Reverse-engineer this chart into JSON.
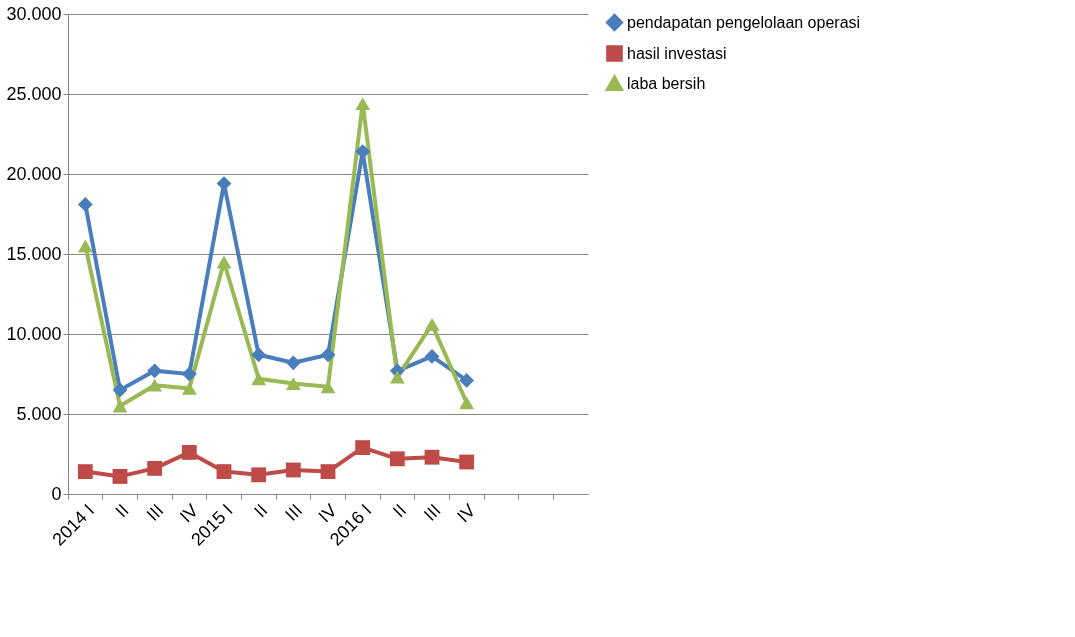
{
  "chart_data": {
    "type": "line",
    "categories": [
      "2014 I",
      "II",
      "III",
      "IV",
      "2015 I",
      "II",
      "III",
      "IV",
      "2016 I",
      "II",
      "III",
      "IV",
      null,
      null,
      null
    ],
    "series": [
      {
        "name": "pendapatan pengelolaan operasi",
        "color": "#4a7ebb",
        "marker": "diamond",
        "values": [
          18100,
          6500,
          7700,
          7500,
          19400,
          8700,
          8200,
          8700,
          21400,
          7700,
          8600,
          7100,
          null,
          null,
          null
        ]
      },
      {
        "name": "hasil investasi",
        "color": "#be4b48",
        "marker": "square",
        "values": [
          1400,
          1100,
          1600,
          2600,
          1400,
          1200,
          1500,
          1400,
          2900,
          2200,
          2300,
          2000,
          null,
          null,
          null
        ]
      },
      {
        "name": "laba bersih",
        "color": "#98b954",
        "marker": "triangle",
        "values": [
          15500,
          5500,
          6800,
          6600,
          14500,
          7200,
          6900,
          6700,
          24400,
          7300,
          10600,
          5700,
          null,
          null,
          null
        ]
      }
    ],
    "ylim": [
      0,
      30000
    ],
    "yticks": [
      0,
      {
        "value": 5000,
        "label": "5.000"
      },
      {
        "value": 10000,
        "label": "10.000"
      },
      {
        "value": 15000,
        "label": "15.000"
      },
      {
        "value": 20000,
        "label": "20.000"
      },
      {
        "value": 25000,
        "label": "25.000"
      },
      {
        "value": 30000,
        "label": "30.000"
      }
    ],
    "grid": "y",
    "legend": "right",
    "line_style": "solid"
  }
}
